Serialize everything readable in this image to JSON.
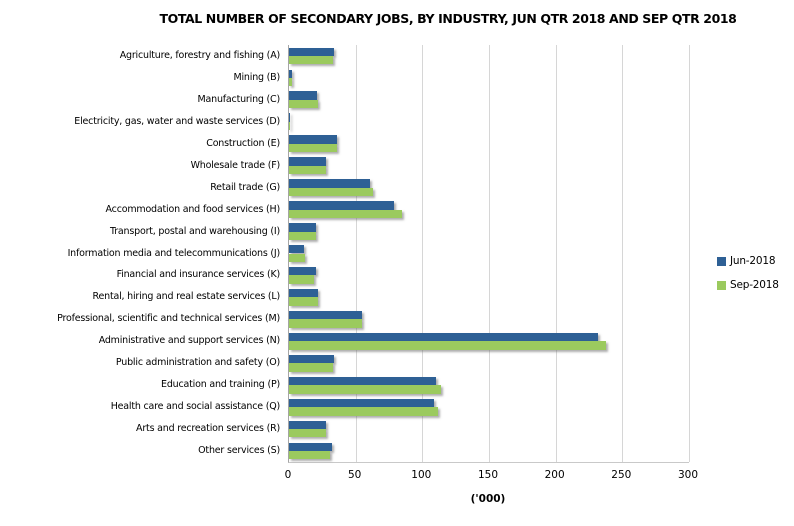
{
  "title": "TOTAL NUMBER OF SECONDARY JOBS, BY INDUSTRY, JUN QTR 2018 AND SEP QTR 2018",
  "chart_data": {
    "type": "bar",
    "orientation": "horizontal",
    "title": "TOTAL NUMBER OF SECONDARY JOBS, BY INDUSTRY, JUN QTR 2018 AND SEP QTR 2018",
    "xlabel": "('000)",
    "xlim": [
      0,
      300
    ],
    "xticks": [
      0,
      50,
      100,
      150,
      200,
      250,
      300
    ],
    "grid": true,
    "legend_position": "right",
    "grid_color": "#D6D6D6",
    "axis_color": "#A6A6A6",
    "categories": [
      "Agriculture, forestry and fishing (A)",
      "Mining (B)",
      "Manufacturing (C)",
      "Electricity, gas, water and waste services (D)",
      "Construction (E)",
      "Wholesale trade (F)",
      "Retail trade (G)",
      "Accommodation and food services (H)",
      "Transport, postal and warehousing (I)",
      "Information media and telecommunications (J)",
      "Financial and insurance services (K)",
      "Rental, hiring and real estate services (L)",
      "Professional, scientific and technical services (M)",
      "Administrative and support services (N)",
      "Public administration and safety (O)",
      "Education and training (P)",
      "Health care and social assistance (Q)",
      "Arts and recreation services (R)",
      "Other services (S)"
    ],
    "series": [
      {
        "name": "Jun-2018",
        "color": "#2E6095",
        "values": [
          34,
          2,
          21,
          1,
          36,
          28,
          61,
          79,
          20,
          11,
          20,
          22,
          55,
          232,
          34,
          110,
          109,
          28,
          32
        ]
      },
      {
        "name": "Sep-2018",
        "color": "#9BCA5E",
        "values": [
          33,
          2,
          22,
          1,
          36,
          28,
          63,
          85,
          20,
          12,
          19,
          22,
          55,
          238,
          33,
          114,
          112,
          28,
          31
        ]
      }
    ]
  }
}
